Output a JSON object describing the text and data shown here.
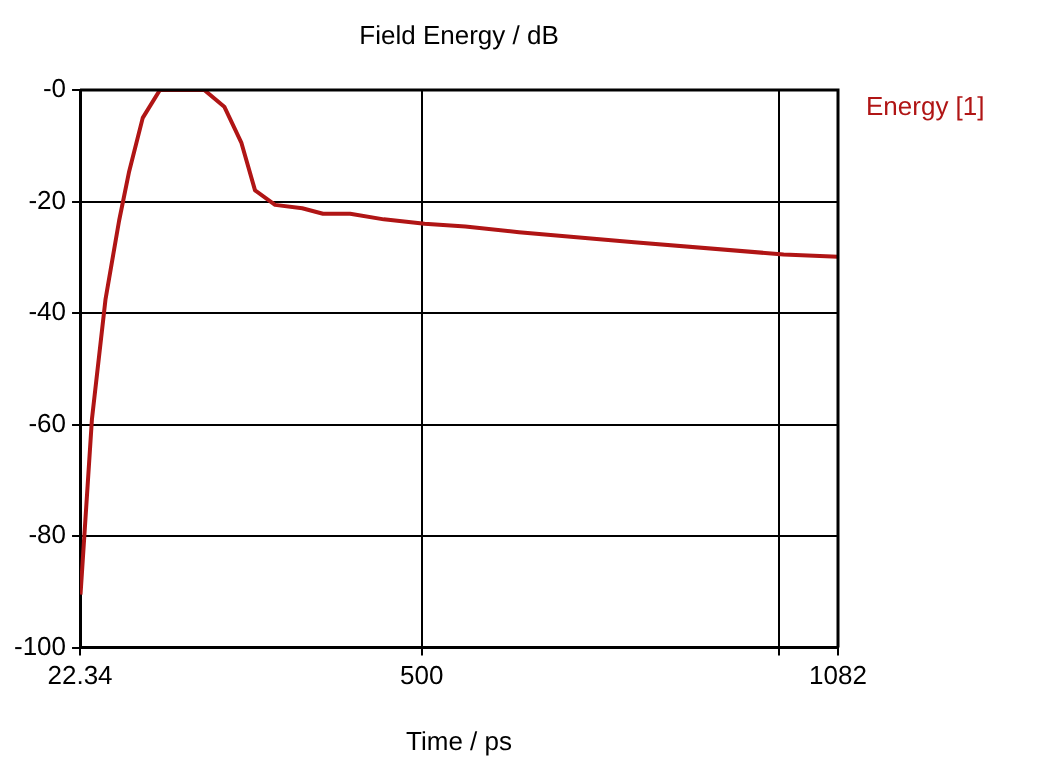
{
  "chart_data": {
    "type": "line",
    "title": "Field Energy / dB",
    "xlabel": "Time / ps",
    "xlim": [
      22.34,
      1082
    ],
    "xticks": [
      22.34,
      500,
      {
        "value": 1000,
        "label": null
      },
      1082
    ],
    "ylim": [
      -100,
      0
    ],
    "yticks": [
      {
        "value": 0,
        "label": "-0"
      },
      -20,
      -40,
      -60,
      -80,
      -100
    ],
    "grid": true,
    "legend": "top right",
    "marker": "none",
    "line_style": "solid",
    "series": [
      {
        "name": "Energy [1]",
        "color": "#b01515",
        "x": [
          23,
          39,
          58,
          77,
          91,
          110,
          134,
          196,
          224,
          248,
          267,
          295,
          333,
          362,
          400,
          447,
          504,
          561,
          636,
          797,
          1006,
          1082
        ],
        "values": [
          -90.5,
          -59,
          -37.5,
          -23.4,
          -14.6,
          -5,
          0,
          0,
          -3,
          -9.5,
          -18,
          -20.6,
          -21.2,
          -22.2,
          -22.2,
          -23.2,
          -24,
          -24.5,
          -25.5,
          -27.3,
          -29.5,
          -29.9
        ]
      }
    ]
  }
}
